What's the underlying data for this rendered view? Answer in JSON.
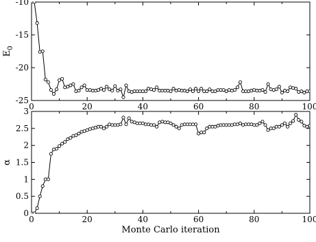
{
  "chart_data": [
    {
      "type": "line",
      "title": "",
      "xlabel": "",
      "ylabel": "E",
      "ylabel_subscript": "0",
      "xlim": [
        0,
        100
      ],
      "ylim": [
        -25,
        -10
      ],
      "xticks": [
        0,
        20,
        40,
        60,
        80,
        100
      ],
      "yticks": [
        -25,
        -20,
        -15,
        -10
      ],
      "xtick_labels": [
        "0",
        "20",
        "40",
        "60",
        "80",
        "100"
      ],
      "ytick_labels": [
        "-25",
        "-20",
        "-15",
        "-10"
      ],
      "grid": false,
      "legend": "none",
      "marker": "open-circle",
      "series": [
        {
          "x": [
            0,
            1,
            2,
            3,
            4,
            5,
            6,
            7,
            8,
            9,
            10,
            11,
            12,
            13,
            14,
            15,
            16,
            17,
            18,
            19,
            20,
            21,
            22,
            23,
            24,
            25,
            26,
            27,
            28,
            29,
            30,
            31,
            32,
            33,
            34,
            35,
            36,
            37,
            38,
            39,
            40,
            41,
            42,
            43,
            44,
            45,
            46,
            47,
            48,
            49,
            50,
            51,
            52,
            53,
            54,
            55,
            56,
            57,
            58,
            59,
            60,
            61,
            62,
            63,
            64,
            65,
            66,
            67,
            68,
            69,
            70,
            71,
            72,
            73,
            74,
            75,
            76,
            77,
            78,
            79,
            80,
            81,
            82,
            83,
            84,
            85,
            86,
            87,
            88,
            89,
            90,
            91,
            92,
            93,
            94,
            95,
            96,
            97,
            98,
            99,
            100
          ],
          "values": [
            -10.0,
            -10.0,
            -13.2,
            -17.6,
            -17.5,
            -21.8,
            -22.2,
            -23.4,
            -24.0,
            -23.3,
            -21.9,
            -21.7,
            -23.0,
            -22.9,
            -22.7,
            -22.5,
            -23.6,
            -23.5,
            -23.0,
            -22.7,
            -23.4,
            -23.4,
            -23.5,
            -23.5,
            -23.4,
            -23.2,
            -23.4,
            -22.9,
            -23.3,
            -23.5,
            -22.8,
            -23.5,
            -23.3,
            -24.5,
            -22.7,
            -23.6,
            -23.7,
            -23.6,
            -23.6,
            -23.6,
            -23.6,
            -23.6,
            -23.2,
            -23.3,
            -23.4,
            -23.0,
            -23.5,
            -23.5,
            -23.5,
            -23.5,
            -23.6,
            -23.2,
            -23.5,
            -23.4,
            -23.5,
            -23.5,
            -23.6,
            -23.3,
            -23.6,
            -23.2,
            -23.6,
            -23.2,
            -23.6,
            -23.6,
            -23.3,
            -23.6,
            -23.6,
            -23.4,
            -23.4,
            -23.4,
            -23.6,
            -23.4,
            -23.5,
            -23.4,
            -23.0,
            -22.2,
            -23.6,
            -23.6,
            -23.6,
            -23.5,
            -23.4,
            -23.5,
            -23.5,
            -23.4,
            -23.7,
            -22.5,
            -23.3,
            -23.4,
            -23.3,
            -22.9,
            -23.8,
            -23.5,
            -23.6,
            -23.0,
            -23.1,
            -23.2,
            -23.7,
            -23.6,
            -23.8,
            -23.6,
            -23.6
          ]
        }
      ]
    },
    {
      "type": "line",
      "title": "",
      "xlabel": "Monte Carlo iteration",
      "ylabel": "α",
      "xlim": [
        0,
        100
      ],
      "ylim": [
        0,
        3
      ],
      "xticks": [
        0,
        20,
        40,
        60,
        80,
        100
      ],
      "yticks": [
        0,
        0.5,
        1,
        1.5,
        2,
        2.5,
        3
      ],
      "xtick_labels": [
        "0",
        "20",
        "40",
        "60",
        "80",
        "100"
      ],
      "ytick_labels": [
        "0",
        "0.5",
        "1",
        "1.5",
        "2",
        "2.5",
        "3"
      ],
      "grid": false,
      "legend": "none",
      "marker": "open-circle",
      "series": [
        {
          "x": [
            0,
            1,
            2,
            3,
            4,
            5,
            6,
            7,
            8,
            9,
            10,
            11,
            12,
            13,
            14,
            15,
            16,
            17,
            18,
            19,
            20,
            21,
            22,
            23,
            24,
            25,
            26,
            27,
            28,
            29,
            30,
            31,
            32,
            33,
            34,
            35,
            36,
            37,
            38,
            39,
            40,
            41,
            42,
            43,
            44,
            45,
            46,
            47,
            48,
            49,
            50,
            51,
            52,
            53,
            54,
            55,
            56,
            57,
            58,
            59,
            60,
            61,
            62,
            63,
            64,
            65,
            66,
            67,
            68,
            69,
            70,
            71,
            72,
            73,
            74,
            75,
            76,
            77,
            78,
            79,
            80,
            81,
            82,
            83,
            84,
            85,
            86,
            87,
            88,
            89,
            90,
            91,
            92,
            93,
            94,
            95,
            96,
            97,
            98,
            99,
            100
          ],
          "values": [
            0.0,
            0.0,
            0.15,
            0.5,
            0.8,
            1.0,
            1.0,
            1.75,
            1.88,
            1.9,
            1.98,
            2.05,
            2.1,
            2.18,
            2.22,
            2.28,
            2.3,
            2.35,
            2.4,
            2.42,
            2.45,
            2.48,
            2.5,
            2.52,
            2.55,
            2.55,
            2.5,
            2.55,
            2.62,
            2.6,
            2.6,
            2.6,
            2.62,
            2.82,
            2.62,
            2.8,
            2.7,
            2.68,
            2.65,
            2.65,
            2.65,
            2.62,
            2.62,
            2.6,
            2.6,
            2.55,
            2.68,
            2.7,
            2.68,
            2.68,
            2.65,
            2.6,
            2.55,
            2.5,
            2.6,
            2.62,
            2.62,
            2.62,
            2.62,
            2.62,
            2.35,
            2.38,
            2.38,
            2.5,
            2.55,
            2.55,
            2.55,
            2.58,
            2.6,
            2.6,
            2.6,
            2.6,
            2.6,
            2.62,
            2.62,
            2.65,
            2.6,
            2.62,
            2.62,
            2.62,
            2.6,
            2.6,
            2.65,
            2.7,
            2.6,
            2.45,
            2.5,
            2.5,
            2.55,
            2.55,
            2.6,
            2.65,
            2.55,
            2.65,
            2.72,
            2.9,
            2.75,
            2.7,
            2.58,
            2.55,
            2.58
          ]
        }
      ]
    }
  ]
}
